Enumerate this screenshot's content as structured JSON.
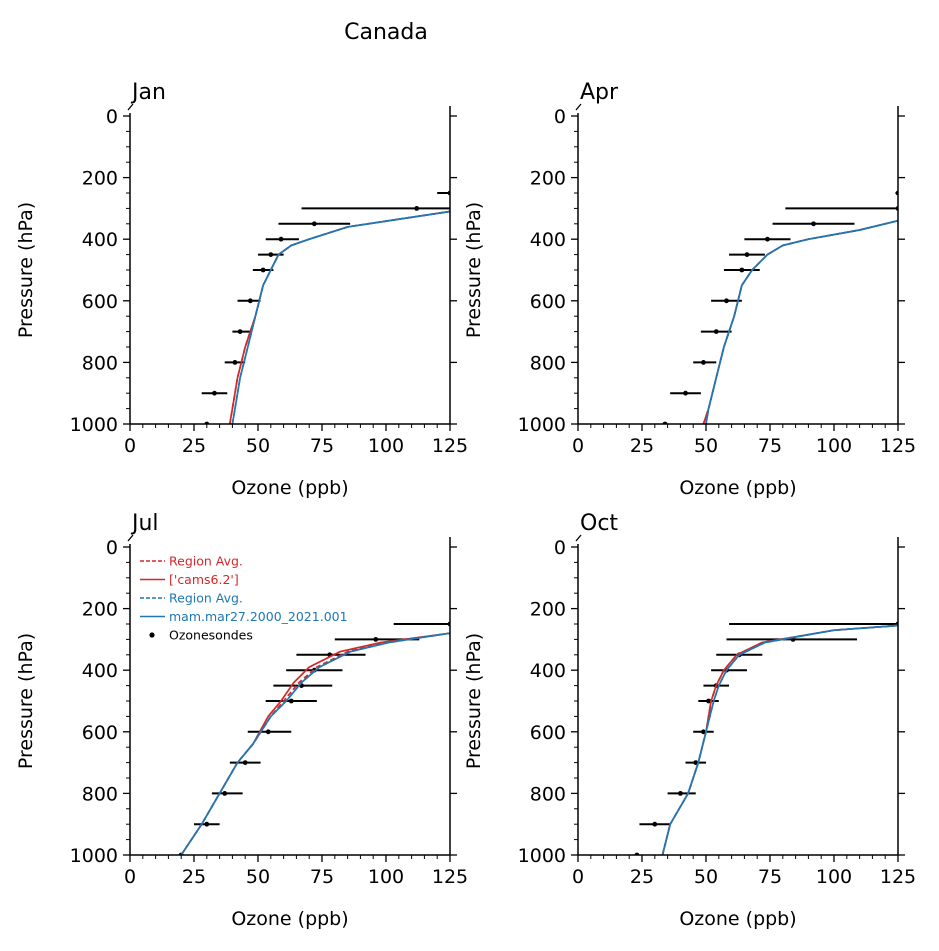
{
  "figure": {
    "suptitle": "Canada"
  },
  "colors": {
    "cams": "#d62728",
    "mam": "#1f77b4",
    "obs": "#000000"
  },
  "legend": {
    "placement": "top-left",
    "panel": "Jul",
    "entries": [
      {
        "label": "Region Avg.",
        "style": "dashed",
        "color": "#d62728"
      },
      {
        "label": "['cams6.2']",
        "style": "solid",
        "color": "#d62728"
      },
      {
        "label": "Region Avg.",
        "style": "dashed",
        "color": "#1f77b4"
      },
      {
        "label": "mam.mar27.2000_2021.001",
        "style": "solid",
        "color": "#1f77b4"
      },
      {
        "label": "Ozonesondes",
        "style": "dot",
        "color": "#000000"
      }
    ]
  },
  "chart_data": [
    {
      "type": "line",
      "title": "Jan",
      "xlabel": "Ozone (ppb)",
      "ylabel": "Pressure (hPa)",
      "xlim": [
        0,
        125
      ],
      "ylim": [
        1000,
        0
      ],
      "xticks": [
        "0",
        "25",
        "50",
        "75",
        "100",
        "125"
      ],
      "yticks": [
        "0",
        "200",
        "400",
        "600",
        "800",
        "1000"
      ],
      "series": [
        {
          "name": "Region Avg.",
          "model": "cams",
          "style": "dashed",
          "x": [
            39,
            40,
            42,
            45,
            49,
            52,
            55,
            58,
            63,
            70,
            85,
            125
          ],
          "y": [
            1000,
            950,
            850,
            750,
            650,
            550,
            500,
            450,
            420,
            400,
            360,
            310
          ]
        },
        {
          "name": "['cams6.2']",
          "model": "cams",
          "style": "solid",
          "x": [
            39,
            40,
            42,
            45,
            49,
            52,
            55,
            58,
            63,
            70,
            85,
            125
          ],
          "y": [
            1000,
            950,
            850,
            750,
            650,
            550,
            500,
            450,
            420,
            400,
            360,
            310
          ]
        },
        {
          "name": "Region Avg.",
          "model": "mam",
          "style": "dashed",
          "x": [
            40,
            41,
            43,
            46,
            49,
            52,
            55,
            58,
            63,
            70,
            85,
            125
          ],
          "y": [
            1000,
            950,
            850,
            750,
            650,
            550,
            500,
            450,
            420,
            400,
            360,
            310
          ]
        },
        {
          "name": "mam.mar27.2000_2021.001",
          "model": "mam",
          "style": "solid",
          "x": [
            40,
            41,
            43,
            46,
            49,
            52,
            55,
            58,
            63,
            70,
            85,
            125
          ],
          "y": [
            1000,
            950,
            850,
            750,
            650,
            550,
            500,
            450,
            420,
            400,
            360,
            310
          ]
        }
      ],
      "observations": [
        {
          "p": 1000,
          "o3": 30,
          "lo": 30,
          "hi": 30
        },
        {
          "p": 900,
          "o3": 33,
          "lo": 28,
          "hi": 38
        },
        {
          "p": 800,
          "o3": 41,
          "lo": 37,
          "hi": 45
        },
        {
          "p": 700,
          "o3": 43,
          "lo": 40,
          "hi": 47
        },
        {
          "p": 600,
          "o3": 47,
          "lo": 42,
          "hi": 51
        },
        {
          "p": 500,
          "o3": 52,
          "lo": 48,
          "hi": 56
        },
        {
          "p": 450,
          "o3": 55,
          "lo": 50,
          "hi": 60
        },
        {
          "p": 400,
          "o3": 59,
          "lo": 53,
          "hi": 66
        },
        {
          "p": 350,
          "o3": 72,
          "lo": 58,
          "hi": 86
        },
        {
          "p": 300,
          "o3": 112,
          "lo": 67,
          "hi": 125
        },
        {
          "p": 250,
          "o3": 125,
          "lo": 120,
          "hi": 125
        }
      ]
    },
    {
      "type": "line",
      "title": "Apr",
      "xlabel": "Ozone (ppb)",
      "ylabel": "Pressure (hPa)",
      "xlim": [
        0,
        125
      ],
      "ylim": [
        1000,
        0
      ],
      "xticks": [
        "0",
        "25",
        "50",
        "75",
        "100",
        "125"
      ],
      "yticks": [
        "0",
        "200",
        "400",
        "600",
        "800",
        "1000"
      ],
      "series": [
        {
          "name": "Region Avg.",
          "model": "cams",
          "style": "dashed",
          "x": [
            49,
            51,
            54,
            57,
            61,
            64,
            68,
            74,
            80,
            90,
            110,
            125
          ],
          "y": [
            1000,
            950,
            850,
            750,
            650,
            550,
            500,
            450,
            420,
            400,
            370,
            340
          ]
        },
        {
          "name": "['cams6.2']",
          "model": "cams",
          "style": "solid",
          "x": [
            49,
            51,
            54,
            57,
            61,
            64,
            68,
            74,
            80,
            90,
            110,
            125
          ],
          "y": [
            1000,
            950,
            850,
            750,
            650,
            550,
            500,
            450,
            420,
            400,
            370,
            340
          ]
        },
        {
          "name": "Region Avg.",
          "model": "mam",
          "style": "dashed",
          "x": [
            50,
            51,
            54,
            57,
            61,
            64,
            68,
            74,
            80,
            90,
            110,
            125
          ],
          "y": [
            1000,
            950,
            850,
            750,
            650,
            550,
            500,
            450,
            420,
            400,
            370,
            340
          ]
        },
        {
          "name": "mam.mar27.2000_2021.001",
          "model": "mam",
          "style": "solid",
          "x": [
            50,
            51,
            54,
            57,
            61,
            64,
            68,
            74,
            80,
            90,
            110,
            125
          ],
          "y": [
            1000,
            950,
            850,
            750,
            650,
            550,
            500,
            450,
            420,
            400,
            370,
            340
          ]
        }
      ],
      "observations": [
        {
          "p": 1000,
          "o3": 34,
          "lo": 34,
          "hi": 34
        },
        {
          "p": 900,
          "o3": 42,
          "lo": 36,
          "hi": 48
        },
        {
          "p": 800,
          "o3": 49,
          "lo": 45,
          "hi": 54
        },
        {
          "p": 700,
          "o3": 54,
          "lo": 48,
          "hi": 60
        },
        {
          "p": 600,
          "o3": 58,
          "lo": 52,
          "hi": 64
        },
        {
          "p": 500,
          "o3": 64,
          "lo": 57,
          "hi": 71
        },
        {
          "p": 450,
          "o3": 66,
          "lo": 59,
          "hi": 73
        },
        {
          "p": 400,
          "o3": 74,
          "lo": 65,
          "hi": 83
        },
        {
          "p": 350,
          "o3": 92,
          "lo": 76,
          "hi": 108
        },
        {
          "p": 300,
          "o3": 125,
          "lo": 81,
          "hi": 125
        },
        {
          "p": 250,
          "o3": 125,
          "lo": 124,
          "hi": 125
        }
      ]
    },
    {
      "type": "line",
      "title": "Jul",
      "xlabel": "Ozone (ppb)",
      "ylabel": "Pressure (hPa)",
      "xlim": [
        0,
        125
      ],
      "ylim": [
        1000,
        0
      ],
      "xticks": [
        "0",
        "25",
        "50",
        "75",
        "100",
        "125"
      ],
      "yticks": [
        "0",
        "200",
        "400",
        "600",
        "800",
        "1000"
      ],
      "series": [
        {
          "name": "Region Avg.",
          "model": "cams",
          "style": "dashed",
          "x": [
            20,
            28,
            35,
            42,
            48,
            55,
            60,
            66,
            73,
            85,
            100,
            125
          ],
          "y": [
            1000,
            900,
            800,
            700,
            640,
            550,
            500,
            440,
            390,
            340,
            310,
            280
          ]
        },
        {
          "name": "['cams6.2']",
          "model": "cams",
          "style": "solid",
          "x": [
            20,
            28,
            35,
            42,
            48,
            54,
            59,
            64,
            70,
            82,
            98,
            125
          ],
          "y": [
            1000,
            900,
            800,
            700,
            640,
            550,
            500,
            440,
            390,
            340,
            310,
            280
          ]
        },
        {
          "name": "Region Avg.",
          "model": "mam",
          "style": "dashed",
          "x": [
            20,
            28,
            35,
            42,
            48,
            55,
            61,
            67,
            74,
            86,
            101,
            125
          ],
          "y": [
            1000,
            900,
            800,
            700,
            640,
            550,
            500,
            440,
            390,
            340,
            310,
            280
          ]
        },
        {
          "name": "mam.mar27.2000_2021.001",
          "model": "mam",
          "style": "solid",
          "x": [
            20,
            28,
            35,
            42,
            48,
            55,
            61,
            67,
            74,
            86,
            101,
            125
          ],
          "y": [
            1000,
            900,
            800,
            700,
            640,
            550,
            500,
            440,
            390,
            340,
            310,
            280
          ]
        }
      ],
      "observations": [
        {
          "p": 1000,
          "o3": 20,
          "lo": 20,
          "hi": 20
        },
        {
          "p": 900,
          "o3": 30,
          "lo": 25,
          "hi": 35
        },
        {
          "p": 800,
          "o3": 37,
          "lo": 32,
          "hi": 44
        },
        {
          "p": 700,
          "o3": 45,
          "lo": 39,
          "hi": 51
        },
        {
          "p": 600,
          "o3": 54,
          "lo": 46,
          "hi": 63
        },
        {
          "p": 500,
          "o3": 63,
          "lo": 53,
          "hi": 73
        },
        {
          "p": 450,
          "o3": 67,
          "lo": 56,
          "hi": 79
        },
        {
          "p": 400,
          "o3": 72,
          "lo": 61,
          "hi": 83
        },
        {
          "p": 350,
          "o3": 78,
          "lo": 65,
          "hi": 92
        },
        {
          "p": 300,
          "o3": 96,
          "lo": 80,
          "hi": 113
        },
        {
          "p": 250,
          "o3": 125,
          "lo": 103,
          "hi": 125
        }
      ]
    },
    {
      "type": "line",
      "title": "Oct",
      "xlabel": "Ozone (ppb)",
      "ylabel": "Pressure (hPa)",
      "xlim": [
        0,
        125
      ],
      "ylim": [
        1000,
        0
      ],
      "xticks": [
        "0",
        "25",
        "50",
        "75",
        "100",
        "125"
      ],
      "yticks": [
        "0",
        "200",
        "400",
        "600",
        "800",
        "1000"
      ],
      "series": [
        {
          "name": "Region Avg.",
          "model": "cams",
          "style": "dashed",
          "x": [
            33,
            36,
            43,
            47,
            50,
            52,
            54,
            57,
            62,
            72,
            100,
            125
          ],
          "y": [
            1000,
            900,
            800,
            700,
            600,
            500,
            450,
            400,
            350,
            310,
            270,
            255
          ]
        },
        {
          "name": "['cams6.2']",
          "model": "cams",
          "style": "solid",
          "x": [
            33,
            36,
            43,
            47,
            50,
            52,
            54,
            57,
            62,
            72,
            100,
            125
          ],
          "y": [
            1000,
            900,
            800,
            700,
            600,
            500,
            450,
            400,
            350,
            310,
            270,
            255
          ]
        },
        {
          "name": "Region Avg.",
          "model": "mam",
          "style": "dashed",
          "x": [
            33,
            36,
            43,
            47,
            50,
            53,
            55,
            58,
            63,
            73,
            100,
            125
          ],
          "y": [
            1000,
            900,
            800,
            700,
            600,
            500,
            450,
            400,
            350,
            310,
            270,
            255
          ]
        },
        {
          "name": "mam.mar27.2000_2021.001",
          "model": "mam",
          "style": "solid",
          "x": [
            33,
            36,
            43,
            47,
            50,
            53,
            55,
            58,
            63,
            73,
            100,
            125
          ],
          "y": [
            1000,
            900,
            800,
            700,
            600,
            500,
            450,
            400,
            350,
            310,
            270,
            255
          ]
        }
      ],
      "observations": [
        {
          "p": 1000,
          "o3": 23,
          "lo": 23,
          "hi": 23
        },
        {
          "p": 900,
          "o3": 30,
          "lo": 24,
          "hi": 36
        },
        {
          "p": 800,
          "o3": 40,
          "lo": 35,
          "hi": 46
        },
        {
          "p": 700,
          "o3": 46,
          "lo": 42,
          "hi": 50
        },
        {
          "p": 600,
          "o3": 49,
          "lo": 45,
          "hi": 53
        },
        {
          "p": 500,
          "o3": 51,
          "lo": 47,
          "hi": 55
        },
        {
          "p": 450,
          "o3": 54,
          "lo": 49,
          "hi": 59
        },
        {
          "p": 400,
          "o3": 58,
          "lo": 52,
          "hi": 66
        },
        {
          "p": 350,
          "o3": 63,
          "lo": 54,
          "hi": 72
        },
        {
          "p": 300,
          "o3": 84,
          "lo": 58,
          "hi": 109
        },
        {
          "p": 250,
          "o3": 125,
          "lo": 59,
          "hi": 125
        }
      ]
    }
  ]
}
